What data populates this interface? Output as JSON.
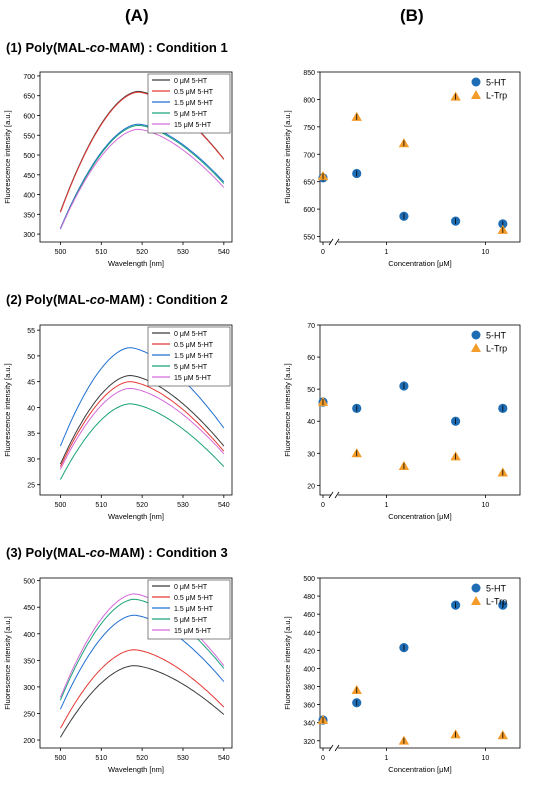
{
  "column_headers": {
    "a": "(A)",
    "b": "(B)"
  },
  "rows": [
    {
      "num": "(1)",
      "pre": "Poly(MAL-",
      "ital": "co",
      "post": "-MAM) : Condition 1"
    },
    {
      "num": "(2)",
      "pre": "Poly(MAL-",
      "ital": "co",
      "post": "-MAM) : Condition 2"
    },
    {
      "num": "(3)",
      "pre": "Poly(MAL-",
      "ital": "co",
      "post": "-MAM) : Condition 3"
    }
  ],
  "colors": {
    "spectra": [
      "#3a3a3a",
      "#e53935",
      "#1f6fd1",
      "#1aa37a",
      "#d46ad9"
    ],
    "ht": "#1f6db5",
    "trp": "#f39c2a"
  },
  "chart_data": [
    {
      "type": "line",
      "panel": "A1",
      "xlabel": "Wavelength [nm]",
      "ylabel": "Fluorescence intensity [a.u.]",
      "xlim": [
        495,
        542
      ],
      "ylim": [
        280,
        710
      ],
      "xticks": [
        500,
        510,
        520,
        530,
        540
      ],
      "yticks": [
        300,
        350,
        400,
        450,
        500,
        550,
        600,
        650,
        700
      ],
      "legend": "top-right",
      "peak_wavelength": 519,
      "series": [
        {
          "name": "0 μM 5-HT",
          "start": 357,
          "peak": 661,
          "end": 490
        },
        {
          "name": "0.5 μM 5-HT",
          "start": 355,
          "peak": 659,
          "end": 489
        },
        {
          "name": "1.5 μM 5-HT",
          "start": 315,
          "peak": 578,
          "end": 432
        },
        {
          "name": "5 μM 5-HT",
          "start": 312,
          "peak": 575,
          "end": 428
        },
        {
          "name": "15 μM 5-HT",
          "start": 313,
          "peak": 565,
          "end": 418
        }
      ]
    },
    {
      "type": "scatter",
      "panel": "B1",
      "xlabel": "Concentration [μM]",
      "ylabel": "Fluorescence intensity [a.u.]",
      "xscale": "log",
      "xticks": [
        0,
        1,
        10
      ],
      "axis_break": true,
      "ylim": [
        540,
        850
      ],
      "yticks": [
        550,
        600,
        650,
        700,
        750,
        800,
        850
      ],
      "legend": "top-right",
      "x": [
        0,
        0.5,
        1.5,
        5,
        15
      ],
      "series": [
        {
          "name": "5-HT",
          "marker": "circle",
          "values": [
            657,
            665,
            587,
            578,
            573
          ]
        },
        {
          "name": "L-Trp",
          "marker": "triangle",
          "values": [
            660,
            768,
            720,
            805,
            562
          ]
        }
      ]
    },
    {
      "type": "line",
      "panel": "A2",
      "xlabel": "Wavelength [nm]",
      "ylabel": "Fluorescence intensity [a.u.]",
      "xlim": [
        495,
        542
      ],
      "ylim": [
        23,
        56
      ],
      "xticks": [
        500,
        510,
        520,
        530,
        540
      ],
      "yticks": [
        25,
        30,
        35,
        40,
        45,
        50,
        55
      ],
      "legend": "top-right",
      "peak_wavelength": 517,
      "series": [
        {
          "name": "0 μM 5-HT",
          "start": 29,
          "peak": 46.2,
          "end": 32.5
        },
        {
          "name": "0.5 μM 5-HT",
          "start": 28.5,
          "peak": 45.0,
          "end": 31.5
        },
        {
          "name": "1.5 μM 5-HT",
          "start": 32.5,
          "peak": 51.6,
          "end": 36.0
        },
        {
          "name": "5 μM 5-HT",
          "start": 26,
          "peak": 40.7,
          "end": 28.5
        },
        {
          "name": "15 μM 5-HT",
          "start": 28,
          "peak": 43.7,
          "end": 31.0
        }
      ]
    },
    {
      "type": "scatter",
      "panel": "B2",
      "xlabel": "Concentration [μM]",
      "ylabel": "Fluorescence intensity [a.u.]",
      "xscale": "log",
      "xticks": [
        0,
        1,
        10
      ],
      "axis_break": true,
      "ylim": [
        17,
        70
      ],
      "yticks": [
        20,
        30,
        40,
        50,
        60,
        70
      ],
      "legend": "top-right",
      "x": [
        0,
        0.5,
        1.5,
        5,
        15
      ],
      "series": [
        {
          "name": "5-HT",
          "marker": "circle",
          "values": [
            46,
            44,
            51,
            40,
            44
          ]
        },
        {
          "name": "L-Trp",
          "marker": "triangle",
          "values": [
            46,
            30,
            26,
            29,
            24
          ]
        }
      ]
    },
    {
      "type": "line",
      "panel": "A3",
      "xlabel": "Wavelength [nm]",
      "ylabel": "Fluorescence intensity [a.u.]",
      "xlim": [
        495,
        542
      ],
      "ylim": [
        185,
        505
      ],
      "xticks": [
        500,
        510,
        520,
        530,
        540
      ],
      "yticks": [
        200,
        250,
        300,
        350,
        400,
        450,
        500
      ],
      "legend": "top-right",
      "peak_wavelength": 518,
      "series": [
        {
          "name": "0 μM 5-HT",
          "start": 205,
          "peak": 340,
          "end": 248
        },
        {
          "name": "0.5 μM 5-HT",
          "start": 222,
          "peak": 370,
          "end": 262
        },
        {
          "name": "1.5 μM 5-HT",
          "start": 258,
          "peak": 435,
          "end": 310
        },
        {
          "name": "5 μM 5-HT",
          "start": 275,
          "peak": 465,
          "end": 335
        },
        {
          "name": "15 μM 5-HT",
          "start": 280,
          "peak": 475,
          "end": 340
        }
      ]
    },
    {
      "type": "scatter",
      "panel": "B3",
      "xlabel": "Concentration [μM]",
      "ylabel": "Fluorescence intensity [a.u.]",
      "xscale": "log",
      "xticks": [
        0,
        1,
        10
      ],
      "axis_break": true,
      "ylim": [
        312,
        500
      ],
      "yticks": [
        320,
        340,
        360,
        380,
        400,
        420,
        440,
        460,
        480,
        500
      ],
      "legend": "top-right",
      "x": [
        0,
        0.5,
        1.5,
        5,
        15
      ],
      "series": [
        {
          "name": "5-HT",
          "marker": "circle",
          "values": [
            343,
            362,
            423,
            470,
            470
          ]
        },
        {
          "name": "L-Trp",
          "marker": "triangle",
          "values": [
            343,
            376,
            320,
            327,
            326
          ]
        }
      ]
    }
  ]
}
